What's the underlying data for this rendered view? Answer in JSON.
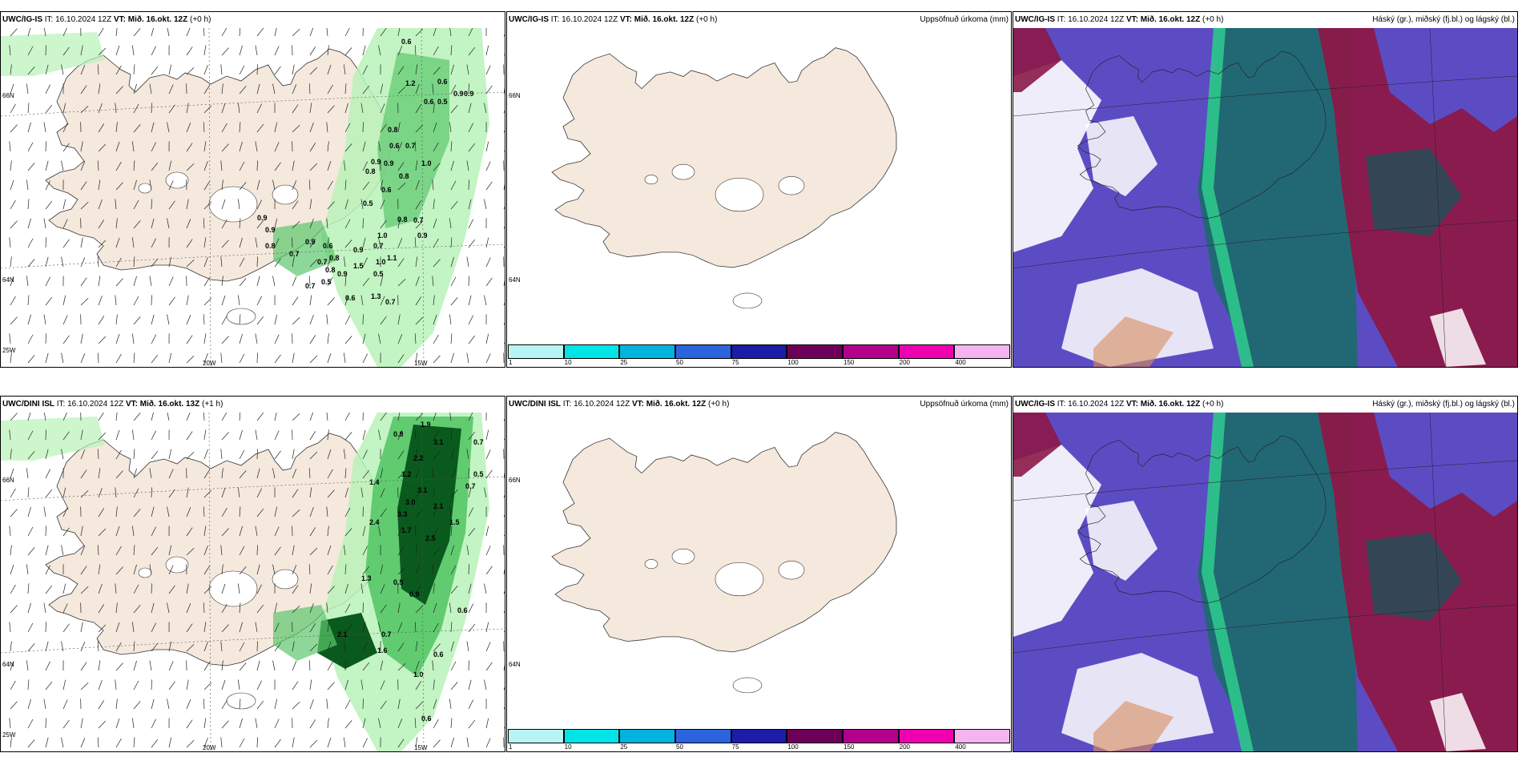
{
  "panels": [
    {
      "id": "p1",
      "model": "UWC/IG-IS",
      "it_label": "IT:",
      "it": "16.10.2024 12Z",
      "vt_label": "VT:",
      "vt": "Mið. 16.okt. 12Z",
      "lead": "(+0 h)",
      "right_title": "",
      "kind": "precip-wind",
      "axis": {
        "lon20": "20W",
        "lon15": "15W",
        "lat66": "66N",
        "lat64": "64N",
        "lon25": "25W"
      },
      "values": [
        "0.6",
        "0.6",
        "1.2",
        "0.9",
        "0.9",
        "0.6",
        "0.5",
        "0.8",
        "0.6",
        "0.7",
        "0.9",
        "0.9",
        "0.8",
        "1.0",
        "0.8",
        "0.6",
        "0.5",
        "0.8",
        "0.7",
        "1.0",
        "0.7",
        "0.9",
        "0.9",
        "0.9",
        "0.6",
        "0.8",
        "0.7",
        "0.7",
        "0.8",
        "0.8",
        "1.5",
        "1.1",
        "1.0",
        "0.5",
        "1.3",
        "0.7",
        "0.9",
        "0.5",
        "0.7",
        "0.6",
        "0.9",
        "0.9"
      ]
    },
    {
      "id": "p2",
      "model": "UWC/IG-IS",
      "it_label": "IT:",
      "it": "16.10.2024 12Z",
      "vt_label": "VT:",
      "vt": "Mið. 16.okt. 12Z",
      "lead": "(+0 h)",
      "right_title": "Uppsöfnuð úrkoma (mm)",
      "kind": "accum",
      "axis": {
        "lat66": "66N",
        "lat64": "64N"
      }
    },
    {
      "id": "p3",
      "model": "UWC/IG-IS",
      "it_label": "IT:",
      "it": "16.10.2024 12Z",
      "vt_label": "VT:",
      "vt": "Mið. 16.okt. 12Z",
      "lead": "(+0 h)",
      "right_title": "Háský (gr.), miðský (fj.bl.) og lágský (bl.)",
      "kind": "cloud"
    },
    {
      "id": "p4",
      "model": "UWC/DINI ISL",
      "it_label": "IT:",
      "it": "16.10.2024 12Z",
      "vt_label": "VT:",
      "vt": "Mið. 16.okt. 13Z",
      "lead": "(+1 h)",
      "right_title": "",
      "kind": "precip-wind2",
      "axis": {
        "lon20": "20W",
        "lon15": "15W",
        "lat66": "66N",
        "lat64": "64N",
        "lon25": "25W"
      },
      "values": [
        "1.9",
        "3.1",
        "0.8",
        "0.7",
        "2.2",
        "1.2",
        "0.5",
        "0.7",
        "1.4",
        "3.1",
        "3.0",
        "2.1",
        "3.3",
        "2.4",
        "1.7",
        "2.5",
        "1.5",
        "1.3",
        "0.5",
        "0.9",
        "0.6",
        "2.1",
        "0.7",
        "1.6",
        "0.6",
        "1.0",
        "0.6"
      ]
    },
    {
      "id": "p5",
      "model": "UWC/DINI ISL",
      "it_label": "IT:",
      "it": "16.10.2024 12Z",
      "vt_label": "VT:",
      "vt": "Mið. 16.okt. 12Z",
      "lead": "(+0 h)",
      "right_title": "Uppsöfnuð úrkoma (mm)",
      "kind": "accum",
      "axis": {
        "lat66": "66N",
        "lat64": "64N"
      }
    },
    {
      "id": "p6",
      "model": "UWC/IG-IS",
      "it_label": "IT:",
      "it": "16.10.2024 12Z",
      "vt_label": "VT:",
      "vt": "Mið. 16.okt. 12Z",
      "lead": "(+0 h)",
      "right_title": "Háský (gr.), miðský (fj.bl.) og lágský (bl.)",
      "kind": "cloud"
    }
  ],
  "colorbar": {
    "colors": [
      "#b8f4f4",
      "#00e4e8",
      "#00b4e0",
      "#2c64e0",
      "#1c1ca8",
      "#6c0058",
      "#b4008c",
      "#f000b0",
      "#f4b4f0"
    ],
    "ticks": [
      "1",
      "10",
      "25",
      "50",
      "75",
      "100",
      "150",
      "200",
      "400"
    ]
  },
  "colors": {
    "land": "#f5e8dc",
    "light_green": "#b8f2b8",
    "mid_green": "#5cc86c",
    "dark_green": "#0a5a1e",
    "cloud_blue": "#5c4cc4",
    "cloud_teal": "#1c6c6c",
    "cloud_maroon": "#8c1848",
    "cloud_green": "#2cc88c",
    "glacier": "#ffffff"
  }
}
